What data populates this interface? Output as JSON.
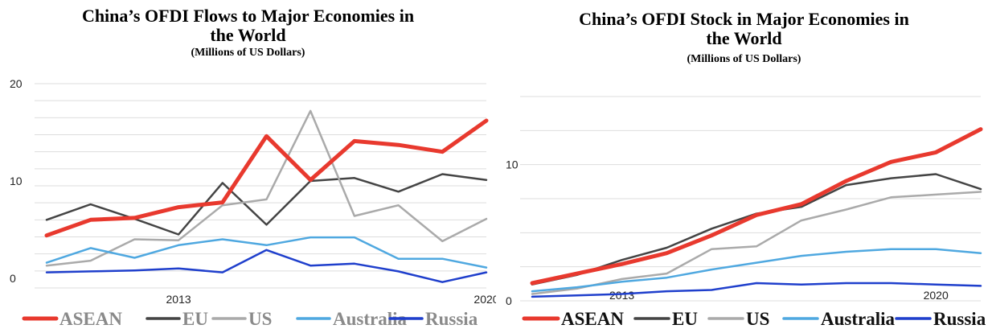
{
  "chart_data": [
    {
      "type": "line",
      "title_lines": [
        "China’s OFDI Flows to Major Economies in",
        "the World"
      ],
      "subtitle": "(Millions of US Dollars)",
      "x": [
        2010,
        2011,
        2012,
        2013,
        2014,
        2015,
        2016,
        2017,
        2018,
        2019,
        2020,
        2021
      ],
      "x_tick_labels": [
        {
          "x": 2013,
          "label": "2013"
        },
        {
          "x": 2020,
          "label": "2020"
        }
      ],
      "y_tick_labels": [
        "0",
        "10",
        "20"
      ],
      "y_tick_values": [
        0,
        10,
        20
      ],
      "ylim": [
        -1,
        20
      ],
      "grid": true,
      "legend_position": "bottom",
      "series": [
        {
          "name": "ASEAN",
          "color": "#e8392e",
          "width": 5,
          "values": [
            4.4,
            6.0,
            6.2,
            7.3,
            7.8,
            14.6,
            10.1,
            14.1,
            13.7,
            13.0,
            16.2,
            null
          ]
        },
        {
          "name": "EU",
          "color": "#444444",
          "width": 2.5,
          "values": [
            6.0,
            7.6,
            6.1,
            4.5,
            9.8,
            5.5,
            10.0,
            10.3,
            8.9,
            10.7,
            10.1,
            null
          ]
        },
        {
          "name": "US",
          "color": "#aaaaaa",
          "width": 2.5,
          "values": [
            1.3,
            1.8,
            4.0,
            3.9,
            7.5,
            8.1,
            17.2,
            6.4,
            7.5,
            3.8,
            6.1,
            null
          ]
        },
        {
          "name": "Australia",
          "color": "#4fa8e0",
          "width": 2.5,
          "values": [
            1.6,
            3.1,
            2.1,
            3.4,
            4.0,
            3.4,
            4.2,
            4.2,
            2.0,
            2.0,
            1.1,
            null
          ]
        },
        {
          "name": "Russia",
          "color": "#1f3fcc",
          "width": 2.5,
          "values": [
            0.6,
            0.7,
            0.8,
            1.0,
            0.6,
            2.9,
            1.3,
            1.5,
            0.7,
            -0.4,
            0.6,
            null
          ]
        }
      ]
    },
    {
      "type": "line",
      "title_lines": [
        "China’s OFDI Stock in Major Economies in",
        "the World"
      ],
      "subtitle": "(Millions of US Dollars)",
      "x": [
        2010,
        2011,
        2012,
        2013,
        2014,
        2015,
        2016,
        2017,
        2018,
        2019,
        2020,
        2021
      ],
      "x_tick_labels": [
        {
          "x": 2013,
          "label": "2013"
        },
        {
          "x": 2020,
          "label": "2020"
        }
      ],
      "y_tick_labels": [
        "0",
        "10"
      ],
      "y_tick_values": [
        0,
        10
      ],
      "ylim": [
        0,
        15
      ],
      "grid": true,
      "legend_position": "bottom",
      "series": [
        {
          "name": "ASEAN",
          "color": "#e8392e",
          "width": 5,
          "values": [
            null,
            1.3,
            2.0,
            2.7,
            3.5,
            4.8,
            6.3,
            7.1,
            8.8,
            10.2,
            10.9,
            12.6
          ]
        },
        {
          "name": "EU",
          "color": "#444444",
          "width": 2.5,
          "values": [
            null,
            1.2,
            1.9,
            3.0,
            3.9,
            5.3,
            6.4,
            6.9,
            8.5,
            9.0,
            9.3,
            8.2
          ]
        },
        {
          "name": "US",
          "color": "#aaaaaa",
          "width": 2.5,
          "values": [
            null,
            0.5,
            0.9,
            1.6,
            2.0,
            3.8,
            4.0,
            5.9,
            6.7,
            7.6,
            7.8,
            8.0
          ]
        },
        {
          "name": "Australia",
          "color": "#4fa8e0",
          "width": 2.5,
          "values": [
            null,
            0.7,
            1.0,
            1.4,
            1.7,
            2.3,
            2.8,
            3.3,
            3.6,
            3.8,
            3.8,
            3.5
          ]
        },
        {
          "name": "Russia",
          "color": "#1f3fcc",
          "width": 2.5,
          "values": [
            null,
            0.3,
            0.4,
            0.5,
            0.7,
            0.8,
            1.3,
            1.2,
            1.3,
            1.3,
            1.2,
            1.1
          ]
        }
      ]
    }
  ]
}
